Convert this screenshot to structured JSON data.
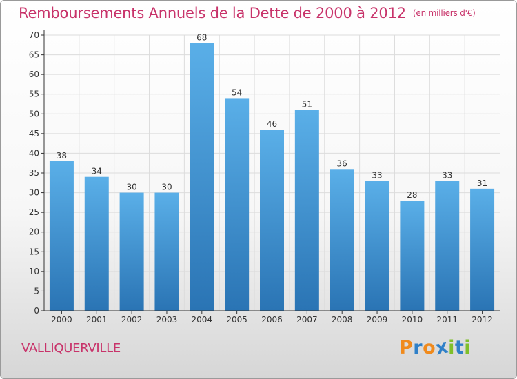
{
  "title": "Remboursements Annuels de la Dette de 2000 à 2012",
  "unit_note": "(en milliers d'€)",
  "commune": "VALLIQUERVILLE",
  "logo": {
    "text": "Proxiti",
    "letter_colors": [
      "#f08a1c",
      "#2f80c8",
      "#f08a1c",
      "#2f80c8",
      "#7fbf2a",
      "#2f80c8",
      "#7fbf2a"
    ]
  },
  "colors": {
    "title": "#c8336a",
    "bar_top": "#5aafe8",
    "bar_bottom": "#2a74b4",
    "grid": "#dcdcdc",
    "axis": "#333333"
  },
  "chart_data": {
    "type": "bar",
    "title": "Remboursements Annuels de la Dette de 2000 à 2012",
    "xlabel": "",
    "ylabel": "",
    "categories": [
      "2000",
      "2001",
      "2002",
      "2003",
      "2004",
      "2005",
      "2006",
      "2007",
      "2008",
      "2009",
      "2010",
      "2011",
      "2012"
    ],
    "values": [
      38,
      34,
      30,
      30,
      68,
      54,
      46,
      51,
      36,
      33,
      28,
      33,
      31
    ],
    "ylim": [
      0,
      70
    ],
    "yticks": [
      0,
      5,
      10,
      15,
      20,
      25,
      30,
      35,
      40,
      45,
      50,
      55,
      60,
      65,
      70
    ],
    "grid": true,
    "data_labels": true
  }
}
